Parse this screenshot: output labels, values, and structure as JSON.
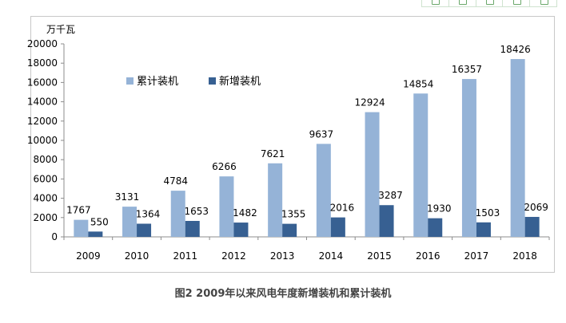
{
  "chart_data": {
    "type": "bar",
    "unit": "万千瓦",
    "categories": [
      "2009",
      "2010",
      "2011",
      "2012",
      "2013",
      "2014",
      "2015",
      "2016",
      "2017",
      "2018"
    ],
    "series": [
      {
        "name": "累计装机",
        "color": "#95b3d7",
        "values": [
          1767,
          3131,
          4784,
          6266,
          7621,
          9637,
          12924,
          14854,
          16357,
          18426
        ]
      },
      {
        "name": "新增装机",
        "color": "#376092",
        "values": [
          550,
          1364,
          1653,
          1482,
          1355,
          2016,
          3287,
          1930,
          1503,
          2069
        ]
      }
    ],
    "yticks": [
      "0",
      "2000",
      "4000",
      "6000",
      "8000",
      "10000",
      "12000",
      "14000",
      "16000",
      "18000",
      "20000"
    ],
    "ylim": [
      0,
      20000
    ],
    "grid": false,
    "legend": "top-left"
  },
  "caption": "图2 2009年以来风电年度新增装机和累计装机",
  "toolbar": {
    "icons": [
      "tool-icon-1",
      "tool-icon-2",
      "tool-icon-3",
      "tool-icon-4",
      "tool-icon-5"
    ]
  }
}
